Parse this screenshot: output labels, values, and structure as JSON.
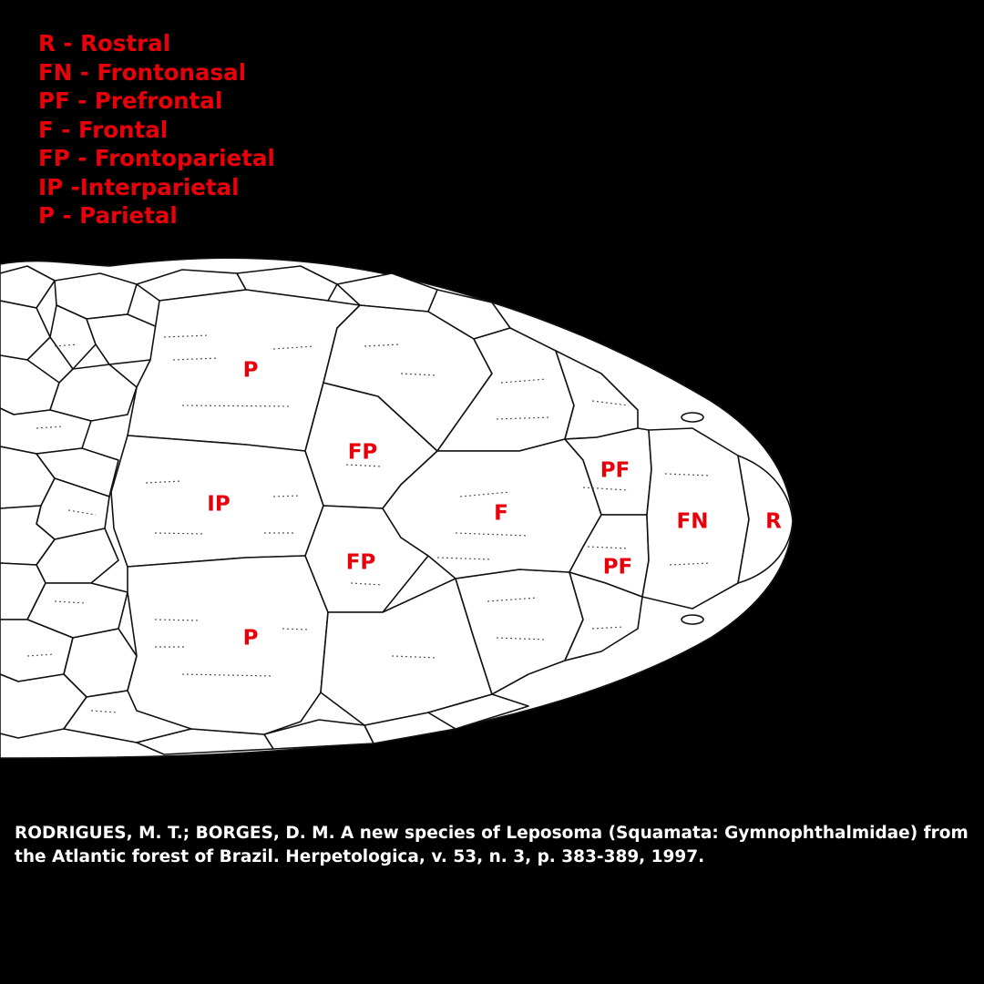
{
  "colors": {
    "background": "#000000",
    "label": "#e8000b",
    "scale_fill": "#ffffff",
    "scale_stroke": "#111111",
    "citation": "#ffffff"
  },
  "legend": [
    "R - Rostral",
    "FN - Frontonasal",
    "PF - Prefrontal",
    "F - Frontal",
    "FP - Frontoparietal",
    "IP -Interparietal",
    "P - Parietal"
  ],
  "scale_labels": {
    "rostral": "R",
    "frontonasal": "FN",
    "prefrontal_upper": "PF",
    "prefrontal_lower": "PF",
    "frontal": "F",
    "frontoparietal_upper": "FP",
    "frontoparietal_lower": "FP",
    "interparietal": "IP",
    "parietal_upper": "P",
    "parietal_lower": "P"
  },
  "citation": {
    "line1": "RODRIGUES, M. T.; BORGES, D. M. A new species of Leposoma (Squamata: Gymnophthalmidae) from",
    "line2": "the Atlantic forest of Brazil. Herpetologica, v. 53, n. 3, p. 383-389, 1997."
  }
}
